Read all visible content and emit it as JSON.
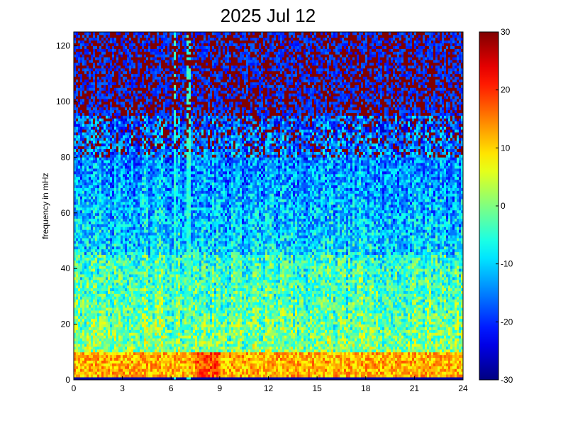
{
  "chart_data": {
    "type": "heatmap",
    "title": "2025 Jul 12",
    "xlabel": "",
    "ylabel": "frequency in mHz",
    "xlim": [
      0,
      24
    ],
    "ylim": [
      0,
      125
    ],
    "xticks": [
      0,
      3,
      6,
      9,
      12,
      15,
      18,
      21,
      24
    ],
    "yticks": [
      0,
      20,
      40,
      60,
      80,
      100,
      120
    ],
    "colorbar": {
      "colormap": "jet",
      "range": [
        -30,
        30
      ],
      "ticks": [
        30,
        20,
        10,
        0,
        -10,
        -20,
        -30
      ]
    },
    "grid": false,
    "features": {
      "vertical_streaks_hours": [
        6.2,
        7.1
      ],
      "broadband_band_mhz": [
        1,
        10
      ],
      "high_freq_level": 30,
      "low_freq_level": 5
    }
  }
}
